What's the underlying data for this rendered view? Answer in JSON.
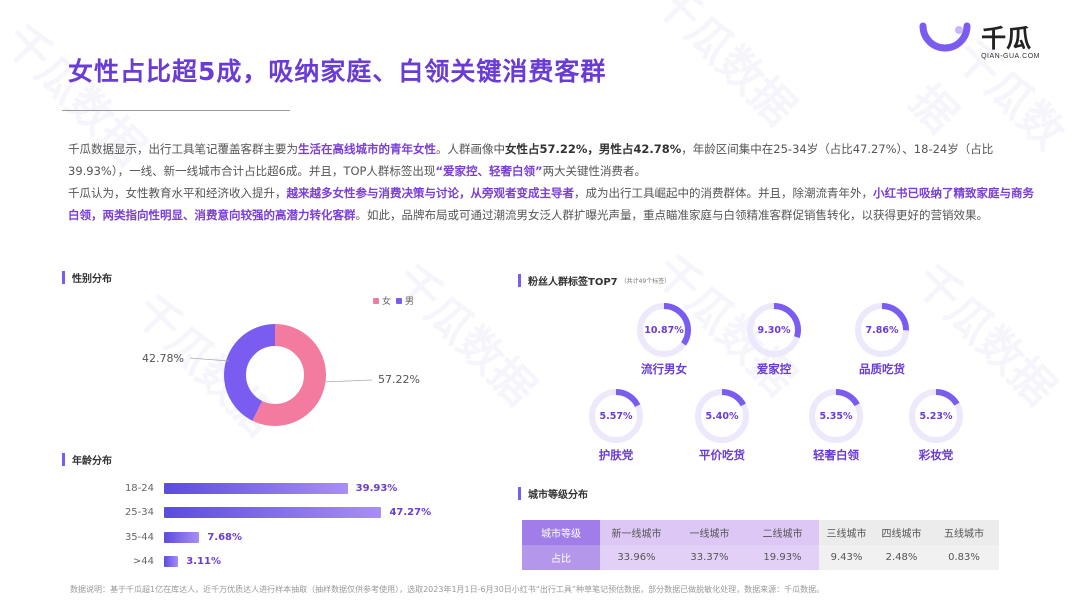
{
  "brand": {
    "name_cn": "千瓜",
    "name_en": "QIAN-GUA.COM",
    "colors": {
      "primary": "#6a3cd6",
      "accent": "#7b5cf0",
      "female": "#f47ba0",
      "male": "#7b5cf0"
    }
  },
  "title": "女性占比超5成，吸纳家庭、白领关键消费客群",
  "intro": {
    "p1": {
      "s1": "千瓜数据显示，出行工具笔记覆盖客群主要为",
      "h1": "生活在高线城市的青年女性",
      "s2": "。人群画像中",
      "b1": "女性占57.22%，男性占42.78%",
      "s3": "，年龄区间集中在25-34岁（占比47.27%）、18-24岁（占比39.93%），一线、新一线城市合计占比超6成。并且，TOP人群标签出现",
      "h2": "“爱家控、轻奢白领”",
      "s4": "两大关键性消费者。"
    },
    "p2": {
      "s1": "千瓜认为，女性教育水平和经济收入提升，",
      "h1": "越来越多女性参与消费决策与讨论，从旁观者变成主导者",
      "s2": "，成为出行工具崛起中的消费群体。并且，除潮流青年外，",
      "h2": "小红书已吸纳了精致家庭与商务白领，两类指向性明显、消费意向较强的高潜力转化客群",
      "s3": "。如此，品牌布局或可通过潮流男女泛人群扩曝光声量，重点瞄准家庭与白领精准客群促销售转化，以获得更好的营销效果。"
    }
  },
  "gender": {
    "section_title": "性别分布",
    "legend": [
      "女",
      "男"
    ],
    "female_label": "57.22%",
    "male_label": "42.78%"
  },
  "age": {
    "section_title": "年龄分布"
  },
  "tags": {
    "section_title": "粉丝人群标签TOP7",
    "section_note": "（共计49个标签）",
    "items": [
      {
        "name": "流行男女",
        "value_label": "10.87%",
        "pct": 10.87
      },
      {
        "name": "爱家控",
        "value_label": "9.30%",
        "pct": 9.3
      },
      {
        "name": "品质吃货",
        "value_label": "7.86%",
        "pct": 7.86
      },
      {
        "name": "护肤党",
        "value_label": "5.57%",
        "pct": 5.57
      },
      {
        "name": "平价吃货",
        "value_label": "5.40%",
        "pct": 5.4
      },
      {
        "name": "轻奢白领",
        "value_label": "5.35%",
        "pct": 5.35
      },
      {
        "name": "彩妆党",
        "value_label": "5.23%",
        "pct": 5.23
      }
    ]
  },
  "city": {
    "section_title": "城市等级分布",
    "header_label": "城市等级",
    "row_label": "占比",
    "levels": [
      "新一线城市",
      "一线城市",
      "二线城市",
      "三线城市",
      "四线城市",
      "五线城市"
    ],
    "shares": [
      "33.96%",
      "33.37%",
      "19.93%",
      "9.43%",
      "2.48%",
      "0.83%"
    ]
  },
  "footer": "数据说明：基于千瓜超1亿在库达人，近千万优质达人进行样本抽取（抽样数据仅供参考使用），选取2023年1月1日-6月30日小红书“出行工具”种草笔记预估数据，部分数据已做脱敏化处理，数据来源：千瓜数据。",
  "chart_data": [
    {
      "type": "pie",
      "title": "性别分布",
      "categories": [
        "女",
        "男"
      ],
      "values": [
        57.22,
        42.78
      ]
    },
    {
      "type": "bar",
      "title": "年龄分布",
      "categories": [
        "18-24",
        "25-34",
        "35-44",
        ">44"
      ],
      "values": [
        39.93,
        47.27,
        7.68,
        3.11
      ],
      "labels": [
        "39.93%",
        "47.27%",
        "7.68%",
        "3.11%"
      ],
      "xlim": [
        0,
        50
      ]
    }
  ]
}
